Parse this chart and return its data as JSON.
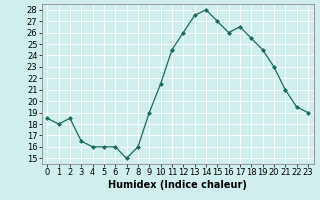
{
  "x": [
    0,
    1,
    2,
    3,
    4,
    5,
    6,
    7,
    8,
    9,
    10,
    11,
    12,
    13,
    14,
    15,
    16,
    17,
    18,
    19,
    20,
    21,
    22,
    23
  ],
  "y": [
    18.5,
    18.0,
    18.5,
    16.5,
    16.0,
    16.0,
    16.0,
    15.0,
    16.0,
    19.0,
    21.5,
    24.5,
    26.0,
    27.5,
    28.0,
    27.0,
    26.0,
    26.5,
    25.5,
    24.5,
    23.0,
    21.0,
    19.5,
    19.0
  ],
  "line_color": "#1a6b5a",
  "marker": "D",
  "marker_size": 2.0,
  "bg_color": "#d0eeee",
  "grid_color": "#ffffff",
  "xlabel": "Humidex (Indice chaleur)",
  "yticks": [
    15,
    16,
    17,
    18,
    19,
    20,
    21,
    22,
    23,
    24,
    25,
    26,
    27,
    28
  ],
  "xlim": [
    -0.5,
    23.5
  ],
  "ylim": [
    14.5,
    28.5
  ],
  "xlabel_fontsize": 7,
  "tick_fontsize": 6,
  "linewidth": 0.9
}
